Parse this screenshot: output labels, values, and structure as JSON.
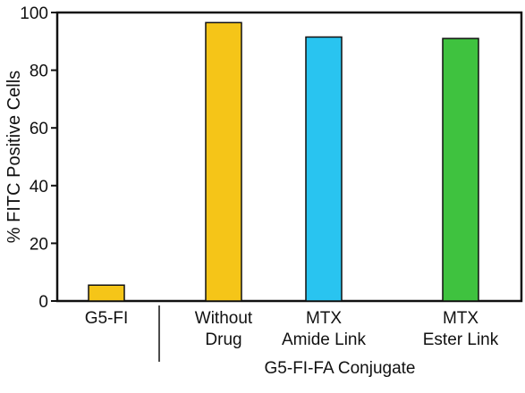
{
  "chart_data": {
    "type": "bar",
    "title": "",
    "xlabel": "",
    "ylabel": "% FITC Positive Cells",
    "ylim": [
      0,
      100
    ],
    "yticks": [
      0,
      20,
      40,
      60,
      80,
      100
    ],
    "grid": false,
    "legend": "none",
    "categories": [
      [
        "G5-FI"
      ],
      [
        "Without",
        "Drug"
      ],
      [
        "MTX",
        "Amide Link"
      ],
      [
        "MTX",
        "Ester Link"
      ]
    ],
    "values": [
      5.5,
      96.5,
      91.5,
      91.0
    ],
    "colors": [
      "#f5c518",
      "#f5c518",
      "#29c4f0",
      "#3fc23f"
    ],
    "bar_border_color": "#111111",
    "group_label": "G5-FI-FA  Conjugate"
  }
}
